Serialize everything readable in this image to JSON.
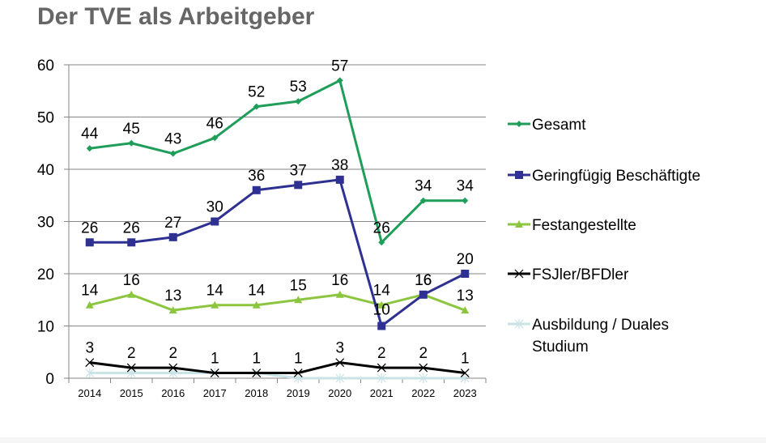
{
  "page": {
    "title": "Der TVE als Arbeitgeber"
  },
  "chart_data": {
    "type": "line",
    "title": "Der TVE als Arbeitgeber",
    "xlabel": "",
    "ylabel": "",
    "categories": [
      "2014",
      "2015",
      "2016",
      "2017",
      "2018",
      "2019",
      "2020",
      "2021",
      "2022",
      "2023"
    ],
    "ylim": [
      0,
      60
    ],
    "yticks": [
      0,
      10,
      20,
      30,
      40,
      50,
      60
    ],
    "grid": true,
    "legend_position": "right",
    "series": [
      {
        "name": "Gesamt",
        "color": "#1f9e5a",
        "marker": "diamond",
        "values": [
          44,
          45,
          43,
          46,
          52,
          53,
          57,
          26,
          34,
          34
        ],
        "labels": [
          "44",
          "45",
          "43",
          "46",
          "52",
          "53",
          "57",
          "26",
          "34",
          "34"
        ]
      },
      {
        "name": "Geringfügig Beschäftigte",
        "color": "#2e3192",
        "marker": "square",
        "values": [
          26,
          26,
          27,
          30,
          36,
          37,
          38,
          10,
          16,
          20
        ],
        "labels": [
          "26",
          "26",
          "27",
          "30",
          "36",
          "37",
          "38",
          "10",
          "16",
          "20"
        ]
      },
      {
        "name": "Festangestellte",
        "color": "#8cc63f",
        "marker": "triangle",
        "values": [
          14,
          16,
          13,
          14,
          14,
          15,
          16,
          14,
          16,
          13
        ],
        "labels": [
          "14",
          "16",
          "13",
          "14",
          "14",
          "15",
          "16",
          "14",
          "16",
          "13"
        ]
      },
      {
        "name": "FSJler/BFDler",
        "color": "#000000",
        "marker": "x",
        "values": [
          3,
          2,
          2,
          1,
          1,
          1,
          3,
          2,
          2,
          1
        ],
        "labels": [
          "3",
          "2",
          "2",
          "1",
          "1",
          "1",
          "3",
          "2",
          "2",
          "1"
        ]
      },
      {
        "name": "Ausbildung / Duales Studium",
        "legend_lines": [
          "Ausbildung / Duales",
          "Studium"
        ],
        "color": "#c9e3e6",
        "marker": "star",
        "values": [
          1,
          1,
          1,
          1,
          1,
          0,
          0,
          0,
          0,
          0
        ],
        "labels": []
      }
    ]
  }
}
